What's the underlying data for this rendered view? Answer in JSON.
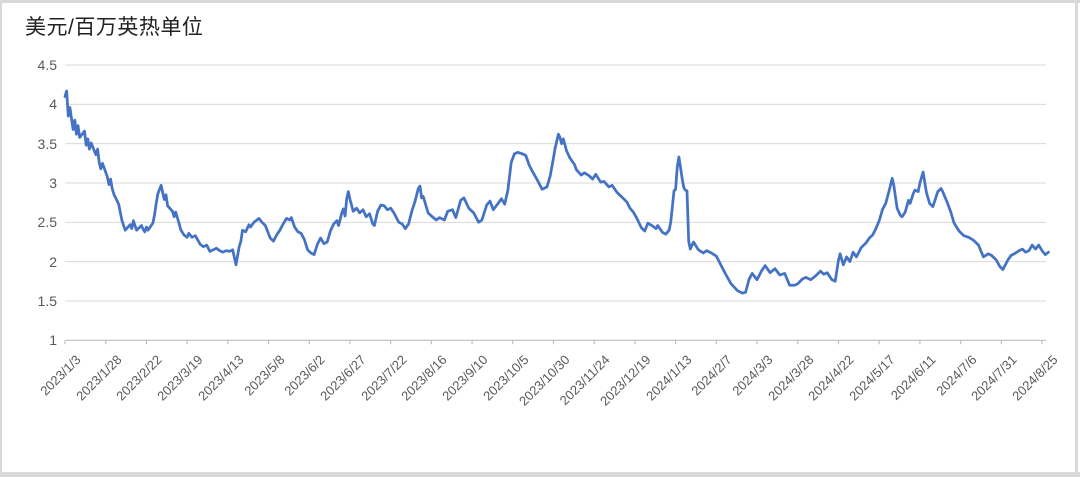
{
  "title": "美元/百万英热单位",
  "chart_data": {
    "type": "line",
    "title": "美元/百万英热单位",
    "ylabel": "美元/百万英热单位",
    "xlabel": "",
    "ylim": [
      1,
      4.5
    ],
    "y_tick_labels": [
      "4.5",
      "4",
      "3.5",
      "3",
      "2.5",
      "2",
      "1.5",
      "1"
    ],
    "y_tick_values": [
      4.5,
      4,
      3.5,
      3,
      2.5,
      2,
      1.5,
      1
    ],
    "x_tick_labels": [
      "2023/1/3",
      "2023/1/28",
      "2023/2/22",
      "2023/3/19",
      "2023/4/13",
      "2023/5/8",
      "2023/6/2",
      "2023/6/27",
      "2023/7/22",
      "2023/8/16",
      "2023/9/10",
      "2023/10/5",
      "2023/10/30",
      "2023/11/24",
      "2023/12/19",
      "2024/1/13",
      "2024/2/7",
      "2024/3/3",
      "2024/3/28",
      "2024/4/22",
      "2024/5/17",
      "2024/6/11",
      "2024/7/6",
      "2024/7/31",
      "2024/8/25"
    ],
    "x_tick_interval_days": 25,
    "start_date": "2023/1/3",
    "grid": true,
    "legend": "none",
    "line_color": "#4472C4",
    "grid_color": "#D9D9D9",
    "axis_color": "#BFBFBF",
    "tick_label_color": "#595959",
    "points_format": "[day_offset_from_2023/1/3, price_usd_per_mmbtu]",
    "points": [
      [
        0,
        4.1
      ],
      [
        1,
        4.17
      ],
      [
        2,
        3.85
      ],
      [
        3,
        3.96
      ],
      [
        5,
        3.68
      ],
      [
        6,
        3.8
      ],
      [
        7,
        3.62
      ],
      [
        8,
        3.73
      ],
      [
        9,
        3.58
      ],
      [
        12,
        3.66
      ],
      [
        13,
        3.48
      ],
      [
        14,
        3.56
      ],
      [
        15,
        3.43
      ],
      [
        16,
        3.51
      ],
      [
        19,
        3.36
      ],
      [
        20,
        3.43
      ],
      [
        21,
        3.26
      ],
      [
        22,
        3.18
      ],
      [
        23,
        3.25
      ],
      [
        26,
        3.08
      ],
      [
        27,
        2.98
      ],
      [
        28,
        3.05
      ],
      [
        29,
        2.93
      ],
      [
        30,
        2.86
      ],
      [
        33,
        2.73
      ],
      [
        34,
        2.62
      ],
      [
        35,
        2.52
      ],
      [
        36,
        2.46
      ],
      [
        37,
        2.4
      ],
      [
        40,
        2.47
      ],
      [
        41,
        2.42
      ],
      [
        42,
        2.52
      ],
      [
        43,
        2.46
      ],
      [
        44,
        2.4
      ],
      [
        47,
        2.46
      ],
      [
        48,
        2.41
      ],
      [
        49,
        2.38
      ],
      [
        50,
        2.44
      ],
      [
        51,
        2.4
      ],
      [
        54,
        2.49
      ],
      [
        55,
        2.6
      ],
      [
        56,
        2.74
      ],
      [
        57,
        2.86
      ],
      [
        59,
        2.97
      ],
      [
        60,
        2.88
      ],
      [
        61,
        2.79
      ],
      [
        62,
        2.85
      ],
      [
        63,
        2.71
      ],
      [
        66,
        2.64
      ],
      [
        67,
        2.57
      ],
      [
        68,
        2.63
      ],
      [
        70,
        2.49
      ],
      [
        71,
        2.41
      ],
      [
        73,
        2.34
      ],
      [
        75,
        2.31
      ],
      [
        76,
        2.36
      ],
      [
        78,
        2.31
      ],
      [
        80,
        2.33
      ],
      [
        83,
        2.22
      ],
      [
        85,
        2.19
      ],
      [
        87,
        2.21
      ],
      [
        89,
        2.13
      ],
      [
        91,
        2.15
      ],
      [
        93,
        2.17
      ],
      [
        95,
        2.14
      ],
      [
        97,
        2.12
      ],
      [
        99,
        2.14
      ],
      [
        101,
        2.13
      ],
      [
        103,
        2.15
      ],
      [
        105,
        1.96
      ],
      [
        107,
        2.19
      ],
      [
        108,
        2.26
      ],
      [
        109,
        2.4
      ],
      [
        111,
        2.38
      ],
      [
        113,
        2.47
      ],
      [
        114,
        2.44
      ],
      [
        116,
        2.5
      ],
      [
        119,
        2.55
      ],
      [
        121,
        2.5
      ],
      [
        123,
        2.46
      ],
      [
        126,
        2.3
      ],
      [
        128,
        2.26
      ],
      [
        130,
        2.34
      ],
      [
        132,
        2.4
      ],
      [
        134,
        2.48
      ],
      [
        136,
        2.55
      ],
      [
        138,
        2.53
      ],
      [
        139,
        2.56
      ],
      [
        141,
        2.44
      ],
      [
        143,
        2.38
      ],
      [
        145,
        2.36
      ],
      [
        147,
        2.28
      ],
      [
        149,
        2.15
      ],
      [
        151,
        2.11
      ],
      [
        153,
        2.09
      ],
      [
        155,
        2.22
      ],
      [
        157,
        2.3
      ],
      [
        159,
        2.23
      ],
      [
        161,
        2.25
      ],
      [
        163,
        2.39
      ],
      [
        165,
        2.48
      ],
      [
        167,
        2.52
      ],
      [
        168,
        2.46
      ],
      [
        170,
        2.62
      ],
      [
        171,
        2.67
      ],
      [
        172,
        2.58
      ],
      [
        173,
        2.8
      ],
      [
        174,
        2.89
      ],
      [
        175,
        2.79
      ],
      [
        177,
        2.64
      ],
      [
        179,
        2.68
      ],
      [
        181,
        2.62
      ],
      [
        183,
        2.66
      ],
      [
        185,
        2.57
      ],
      [
        187,
        2.61
      ],
      [
        189,
        2.48
      ],
      [
        190,
        2.46
      ],
      [
        192,
        2.64
      ],
      [
        194,
        2.72
      ],
      [
        196,
        2.71
      ],
      [
        198,
        2.66
      ],
      [
        200,
        2.68
      ],
      [
        202,
        2.62
      ],
      [
        205,
        2.5
      ],
      [
        207,
        2.48
      ],
      [
        209,
        2.42
      ],
      [
        211,
        2.48
      ],
      [
        213,
        2.64
      ],
      [
        215,
        2.77
      ],
      [
        217,
        2.93
      ],
      [
        218,
        2.96
      ],
      [
        219,
        2.81
      ],
      [
        220,
        2.83
      ],
      [
        223,
        2.62
      ],
      [
        225,
        2.58
      ],
      [
        228,
        2.53
      ],
      [
        230,
        2.56
      ],
      [
        233,
        2.53
      ],
      [
        235,
        2.64
      ],
      [
        238,
        2.66
      ],
      [
        240,
        2.56
      ],
      [
        243,
        2.78
      ],
      [
        245,
        2.81
      ],
      [
        248,
        2.68
      ],
      [
        251,
        2.62
      ],
      [
        254,
        2.5
      ],
      [
        256,
        2.53
      ],
      [
        259,
        2.72
      ],
      [
        261,
        2.77
      ],
      [
        263,
        2.66
      ],
      [
        266,
        2.74
      ],
      [
        268,
        2.8
      ],
      [
        270,
        2.73
      ],
      [
        272,
        2.91
      ],
      [
        274,
        3.26
      ],
      [
        276,
        3.37
      ],
      [
        278,
        3.39
      ],
      [
        281,
        3.37
      ],
      [
        283,
        3.35
      ],
      [
        285,
        3.23
      ],
      [
        287,
        3.15
      ],
      [
        290,
        3.04
      ],
      [
        293,
        2.92
      ],
      [
        296,
        2.95
      ],
      [
        298,
        3.09
      ],
      [
        300,
        3.32
      ],
      [
        301,
        3.44
      ],
      [
        303,
        3.62
      ],
      [
        304,
        3.58
      ],
      [
        305,
        3.5
      ],
      [
        306,
        3.56
      ],
      [
        308,
        3.41
      ],
      [
        310,
        3.32
      ],
      [
        313,
        3.23
      ],
      [
        314,
        3.17
      ],
      [
        317,
        3.1
      ],
      [
        319,
        3.13
      ],
      [
        322,
        3.09
      ],
      [
        324,
        3.05
      ],
      [
        326,
        3.11
      ],
      [
        329,
        3.01
      ],
      [
        331,
        3.02
      ],
      [
        334,
        2.95
      ],
      [
        336,
        2.97
      ],
      [
        339,
        2.88
      ],
      [
        342,
        2.82
      ],
      [
        345,
        2.76
      ],
      [
        347,
        2.68
      ],
      [
        349,
        2.63
      ],
      [
        351,
        2.56
      ],
      [
        354,
        2.43
      ],
      [
        356,
        2.39
      ],
      [
        358,
        2.49
      ],
      [
        361,
        2.45
      ],
      [
        363,
        2.42
      ],
      [
        364,
        2.46
      ],
      [
        367,
        2.37
      ],
      [
        369,
        2.35
      ],
      [
        371,
        2.4
      ],
      [
        372,
        2.5
      ],
      [
        373,
        2.7
      ],
      [
        374,
        2.9
      ],
      [
        375,
        2.92
      ],
      [
        376,
        3.21
      ],
      [
        377,
        3.33
      ],
      [
        378,
        3.2
      ],
      [
        379,
        3.06
      ],
      [
        380,
        2.94
      ],
      [
        381,
        2.91
      ],
      [
        382,
        2.9
      ],
      [
        383,
        2.26
      ],
      [
        384,
        2.16
      ],
      [
        386,
        2.25
      ],
      [
        389,
        2.15
      ],
      [
        392,
        2.11
      ],
      [
        394,
        2.14
      ],
      [
        397,
        2.11
      ],
      [
        400,
        2.07
      ],
      [
        403,
        1.95
      ],
      [
        406,
        1.83
      ],
      [
        409,
        1.72
      ],
      [
        413,
        1.63
      ],
      [
        416,
        1.6
      ],
      [
        418,
        1.61
      ],
      [
        420,
        1.77
      ],
      [
        422,
        1.85
      ],
      [
        425,
        1.77
      ],
      [
        428,
        1.89
      ],
      [
        430,
        1.95
      ],
      [
        433,
        1.86
      ],
      [
        436,
        1.91
      ],
      [
        439,
        1.83
      ],
      [
        442,
        1.85
      ],
      [
        445,
        1.7
      ],
      [
        448,
        1.7
      ],
      [
        450,
        1.72
      ],
      [
        453,
        1.78
      ],
      [
        455,
        1.8
      ],
      [
        458,
        1.77
      ],
      [
        461,
        1.82
      ],
      [
        464,
        1.88
      ],
      [
        466,
        1.84
      ],
      [
        468,
        1.86
      ],
      [
        471,
        1.77
      ],
      [
        473,
        1.75
      ],
      [
        475,
        2.02
      ],
      [
        476,
        2.1
      ],
      [
        478,
        1.96
      ],
      [
        480,
        2.06
      ],
      [
        482,
        2.0
      ],
      [
        484,
        2.12
      ],
      [
        486,
        2.06
      ],
      [
        489,
        2.18
      ],
      [
        492,
        2.24
      ],
      [
        494,
        2.3
      ],
      [
        496,
        2.34
      ],
      [
        498,
        2.42
      ],
      [
        500,
        2.52
      ],
      [
        502,
        2.66
      ],
      [
        504,
        2.74
      ],
      [
        506,
        2.89
      ],
      [
        508,
        3.06
      ],
      [
        509,
        2.97
      ],
      [
        511,
        2.68
      ],
      [
        513,
        2.59
      ],
      [
        514,
        2.57
      ],
      [
        516,
        2.63
      ],
      [
        518,
        2.78
      ],
      [
        519,
        2.74
      ],
      [
        521,
        2.87
      ],
      [
        522,
        2.91
      ],
      [
        524,
        2.89
      ],
      [
        525,
        3.0
      ],
      [
        527,
        3.14
      ],
      [
        529,
        2.88
      ],
      [
        531,
        2.74
      ],
      [
        533,
        2.7
      ],
      [
        536,
        2.89
      ],
      [
        538,
        2.93
      ],
      [
        539,
        2.89
      ],
      [
        542,
        2.74
      ],
      [
        544,
        2.63
      ],
      [
        546,
        2.49
      ],
      [
        549,
        2.39
      ],
      [
        552,
        2.33
      ],
      [
        555,
        2.31
      ],
      [
        558,
        2.27
      ],
      [
        561,
        2.21
      ],
      [
        564,
        2.06
      ],
      [
        567,
        2.1
      ],
      [
        569,
        2.08
      ],
      [
        572,
        2.02
      ],
      [
        574,
        1.94
      ],
      [
        576,
        1.9
      ],
      [
        579,
        2.02
      ],
      [
        581,
        2.08
      ],
      [
        583,
        2.1
      ],
      [
        586,
        2.14
      ],
      [
        588,
        2.16
      ],
      [
        590,
        2.12
      ],
      [
        592,
        2.14
      ],
      [
        594,
        2.21
      ],
      [
        596,
        2.16
      ],
      [
        598,
        2.21
      ],
      [
        600,
        2.14
      ],
      [
        602,
        2.09
      ],
      [
        604,
        2.12
      ]
    ]
  }
}
